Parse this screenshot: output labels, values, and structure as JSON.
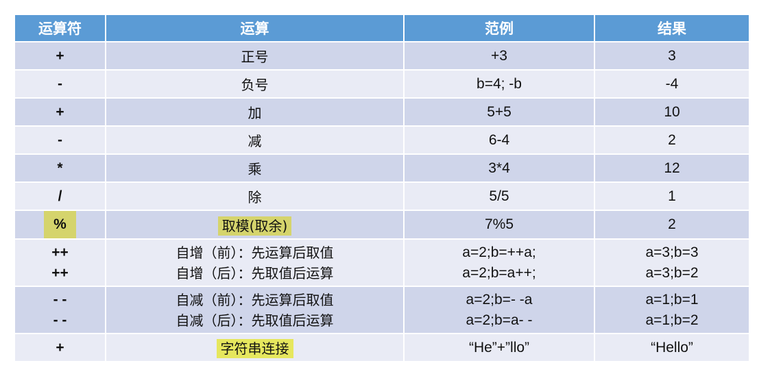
{
  "headers": [
    "运算符",
    "运算",
    "范例",
    "结果"
  ],
  "highlight_colors": {
    "modulo": "#d5d46c",
    "concat": "#e6e75e"
  },
  "rows": [
    {
      "op": [
        "+"
      ],
      "desc": [
        "正号"
      ],
      "example": [
        "+3"
      ],
      "result": [
        "3"
      ]
    },
    {
      "op": [
        "-"
      ],
      "desc": [
        "负号"
      ],
      "example": [
        "b=4; -b"
      ],
      "result": [
        "-4"
      ]
    },
    {
      "op": [
        "+"
      ],
      "desc": [
        "加"
      ],
      "example": [
        "5+5"
      ],
      "result": [
        "10"
      ]
    },
    {
      "op": [
        "-"
      ],
      "desc": [
        "减"
      ],
      "example": [
        "6-4"
      ],
      "result": [
        "2"
      ]
    },
    {
      "op": [
        "*"
      ],
      "desc": [
        "乘"
      ],
      "example": [
        "3*4"
      ],
      "result": [
        "12"
      ]
    },
    {
      "op": [
        "/"
      ],
      "desc": [
        "除"
      ],
      "example": [
        "5/5"
      ],
      "result": [
        "1"
      ]
    },
    {
      "op": [
        "%"
      ],
      "desc": [
        "取模(取余)"
      ],
      "example": [
        "7%5"
      ],
      "result": [
        "2"
      ],
      "highlight": "modulo"
    },
    {
      "op": [
        "++",
        "++"
      ],
      "desc": [
        "自增（前）：先运算后取值",
        "自增（后）：先取值后运算"
      ],
      "example": [
        "a=2;b=++a;",
        "a=2;b=a++;"
      ],
      "result": [
        "a=3;b=3",
        "a=3;b=2"
      ]
    },
    {
      "op": [
        "- -",
        "- -"
      ],
      "desc": [
        "自减（前）：先运算后取值",
        "自减（后）：先取值后运算"
      ],
      "example": [
        "a=2;b=- -a",
        "a=2;b=a- -"
      ],
      "result": [
        "a=1;b=1",
        "a=1;b=2"
      ]
    },
    {
      "op": [
        "+"
      ],
      "desc": [
        "字符串连接"
      ],
      "example": [
        "“He”+”llo”"
      ],
      "result": [
        "“Hello”"
      ],
      "highlight": "concat"
    }
  ]
}
